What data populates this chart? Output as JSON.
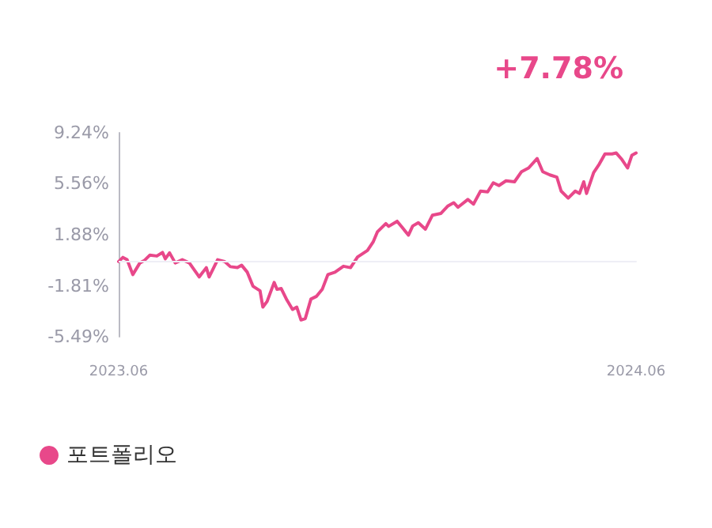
{
  "chart_data": {
    "type": "line",
    "annotations": [
      "+7.78%"
    ],
    "x": [
      "2023-06-01",
      "2023-06-04",
      "2023-06-07",
      "2023-06-11",
      "2023-06-16",
      "2023-06-19",
      "2023-06-23",
      "2023-06-28",
      "2023-07-02",
      "2023-07-04",
      "2023-07-07",
      "2023-07-11",
      "2023-07-16",
      "2023-07-21",
      "2023-07-28",
      "2023-08-02",
      "2023-08-04",
      "2023-08-10",
      "2023-08-15",
      "2023-08-19",
      "2023-08-24",
      "2023-08-27",
      "2023-08-31",
      "2023-09-04",
      "2023-09-09",
      "2023-09-11",
      "2023-09-14",
      "2023-09-19",
      "2023-09-21",
      "2023-09-24",
      "2023-09-28",
      "2023-10-02",
      "2023-10-05",
      "2023-10-08",
      "2023-10-11",
      "2023-10-15",
      "2023-10-19",
      "2023-10-23",
      "2023-10-27",
      "2023-11-01",
      "2023-11-07",
      "2023-11-12",
      "2023-11-17",
      "2023-11-24",
      "2023-11-28",
      "2023-12-01",
      "2023-12-07",
      "2023-12-09",
      "2023-12-15",
      "2023-12-23",
      "2023-12-26",
      "2023-12-30",
      "2024-01-04",
      "2024-01-09",
      "2024-01-15",
      "2024-01-20",
      "2024-01-24",
      "2024-01-27",
      "2024-02-03",
      "2024-02-07",
      "2024-02-12",
      "2024-02-17",
      "2024-02-21",
      "2024-02-25",
      "2024-03-01",
      "2024-03-07",
      "2024-03-12",
      "2024-03-17",
      "2024-03-23",
      "2024-03-27",
      "2024-04-01",
      "2024-04-06",
      "2024-04-09",
      "2024-04-14",
      "2024-04-19",
      "2024-04-22",
      "2024-04-25",
      "2024-04-27",
      "2024-05-02",
      "2024-05-06",
      "2024-05-10",
      "2024-05-15",
      "2024-05-18",
      "2024-05-22",
      "2024-05-26",
      "2024-05-29",
      "2024-06-01"
    ],
    "series": [
      {
        "name": "포트폴리오",
        "color": "#e8488a",
        "values": [
          -0.06,
          0.24,
          0.07,
          -1.0,
          -0.16,
          0.0,
          0.4,
          0.34,
          0.6,
          0.14,
          0.57,
          -0.16,
          0.07,
          -0.16,
          -1.17,
          -0.5,
          -1.17,
          0.07,
          -0.06,
          -0.43,
          -0.5,
          -0.33,
          -0.83,
          -1.84,
          -2.17,
          -3.35,
          -2.94,
          -1.57,
          -2.07,
          -2.01,
          -2.84,
          -3.52,
          -3.35,
          -4.28,
          -4.18,
          -2.77,
          -2.57,
          -2.07,
          -1.0,
          -0.83,
          -0.4,
          -0.5,
          0.27,
          0.74,
          1.35,
          2.08,
          2.68,
          2.48,
          2.85,
          1.85,
          2.51,
          2.75,
          2.28,
          3.29,
          3.42,
          3.96,
          4.19,
          3.86,
          4.42,
          4.09,
          5.03,
          4.97,
          5.63,
          5.43,
          5.77,
          5.7,
          6.43,
          6.7,
          7.38,
          6.43,
          6.2,
          6.03,
          5.03,
          4.52,
          5.03,
          4.86,
          5.7,
          4.86,
          6.37,
          6.98,
          7.71,
          7.71,
          7.78,
          7.31,
          6.7,
          7.61,
          7.78
        ]
      }
    ],
    "xlim": [
      "2023-06-01",
      "2024-06-01"
    ],
    "xticks": [
      {
        "value": "2023-06-01",
        "label": "2023.06"
      },
      {
        "value": "2024-06-01",
        "label": "2024.06"
      }
    ],
    "ylim": [
      -5.49,
      9.24
    ],
    "yticks": [
      {
        "value": -5.49,
        "label": "-5.49%"
      },
      {
        "value": -1.81,
        "label": "-1.81%"
      },
      {
        "value": 1.88,
        "label": "1.88%"
      },
      {
        "value": 5.56,
        "label": "5.56%"
      },
      {
        "value": 9.24,
        "label": "9.24%"
      }
    ],
    "ref_lines": [
      {
        "axis": "y",
        "value": 0,
        "color": "#eeeef6"
      }
    ],
    "grid": false,
    "legend": "bottom left",
    "marker": "none",
    "line_style": "solid"
  }
}
